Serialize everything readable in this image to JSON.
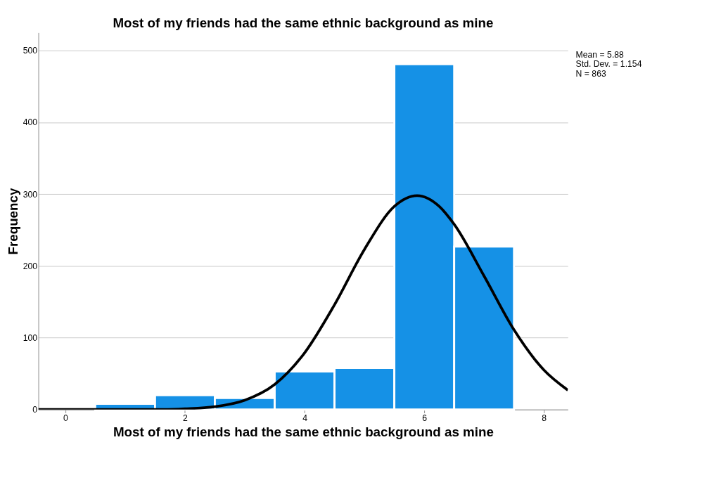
{
  "chart_data": {
    "type": "histogram",
    "title": "Most of my friends had the same ethnic background as mine",
    "xlabel": "Most of my friends had the same ethnic background as mine",
    "ylabel": "Frequency",
    "series": [
      {
        "type": "histogram",
        "bins": [
          0.5,
          1.5,
          2.5,
          3.5,
          4.5,
          5.5,
          6.5,
          7.5
        ],
        "values": [
          8,
          20,
          16,
          53,
          58,
          481,
          227
        ],
        "color": "#1591e6"
      },
      {
        "type": "line",
        "x": [
          -0.45,
          0,
          1,
          1.5,
          2,
          2.5,
          3,
          3.5,
          4,
          4.5,
          5,
          5.5,
          5.88,
          6.25,
          6.5,
          7,
          7.5,
          8,
          8.4
        ],
        "values": [
          0,
          0,
          0,
          0,
          1,
          4,
          13,
          35,
          79,
          146,
          223,
          283,
          298,
          283,
          258,
          186,
          111,
          55,
          27
        ],
        "color": "#000000"
      }
    ],
    "xlim": [
      -0.45,
      8.4
    ],
    "ylim": [
      0,
      525
    ],
    "xticks": [
      0,
      2,
      4,
      6,
      8
    ],
    "yticks": [
      0,
      100,
      200,
      300,
      400,
      500
    ],
    "grid": "y",
    "annotations": [
      "Mean = 5.88",
      "Std. Dev. = 1.154",
      "N = 863"
    ]
  }
}
